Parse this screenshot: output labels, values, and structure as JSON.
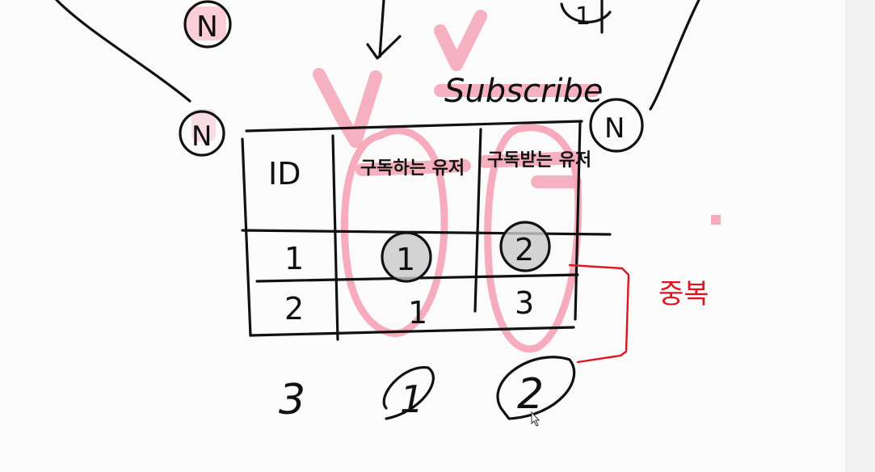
{
  "diagram": {
    "title": "Subscribe",
    "relation_labels": {
      "top_left": "N",
      "left": "N",
      "right": "N",
      "top_right": "1"
    },
    "table": {
      "headers": [
        "ID",
        "구독하는 유저",
        "구독받는 유저"
      ],
      "rows": [
        [
          "1",
          "1",
          "2"
        ],
        [
          "2",
          "1",
          "3"
        ]
      ],
      "extra_row": [
        "3",
        "1",
        "2"
      ]
    },
    "annotation": "중복"
  },
  "colors": {
    "ink": "#111111",
    "highlight": "#f5a3b6",
    "annotation": "#e0141e",
    "background": "#fbfbfb"
  }
}
